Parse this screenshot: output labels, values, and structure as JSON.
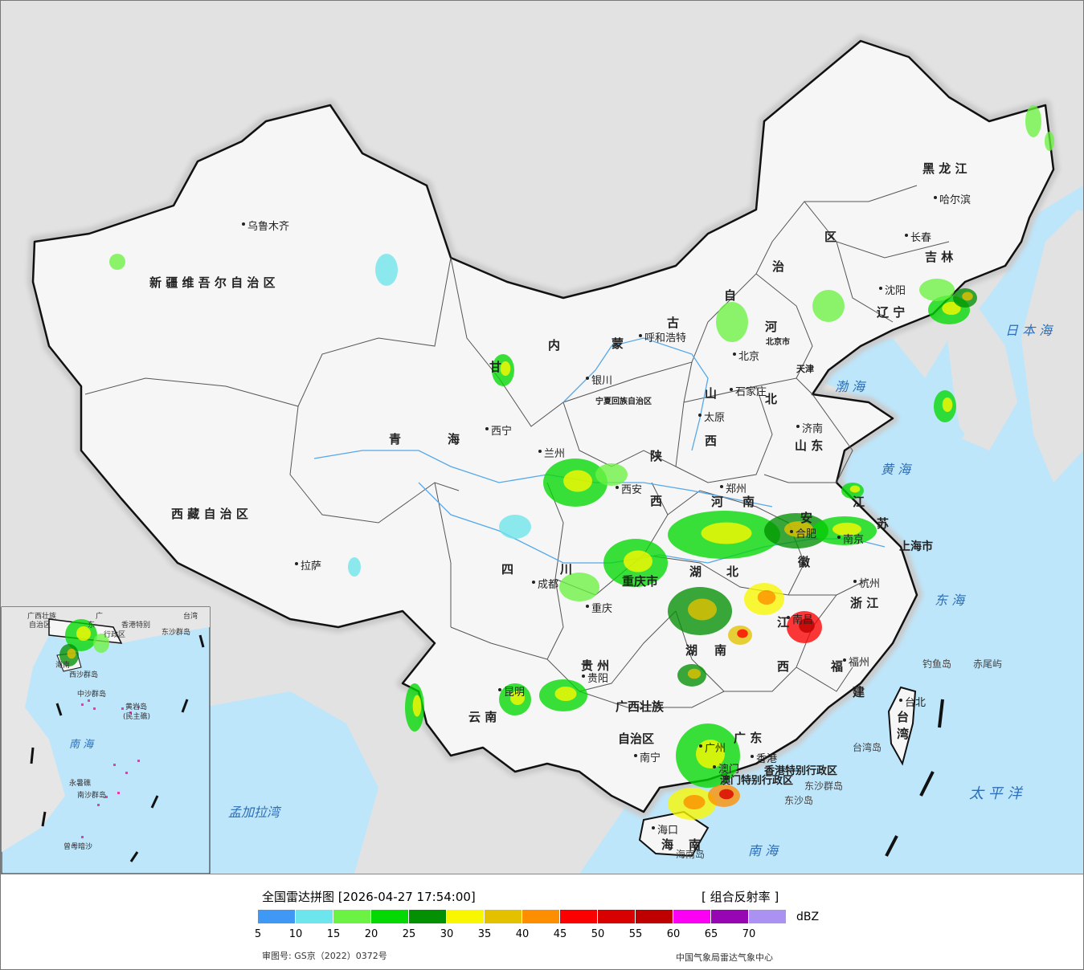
{
  "legend": {
    "title": "全国雷达拼图 [2026-04-27 17:54:00]",
    "product": "[ 组合反射率 ]",
    "unit": "dBZ",
    "colors": [
      "#3e98f4",
      "#6de5ec",
      "#6cf242",
      "#04d904",
      "#039003",
      "#f9f700",
      "#e3c100",
      "#fd8e00",
      "#fb0000",
      "#d90000",
      "#bf0000",
      "#fb00f5",
      "#9606b2",
      "#ab91f1"
    ],
    "ticks": [
      "5",
      "10",
      "15",
      "20",
      "25",
      "30",
      "35",
      "40",
      "45",
      "50",
      "55",
      "60",
      "65",
      "70"
    ],
    "approval": "审图号: GS京（2022）0372号",
    "source": "中国气象局雷达气象中心"
  },
  "provinces": [
    {
      "id": "xinjiang",
      "text": "新 疆 维 吾 尔 自 治 区"
    },
    {
      "id": "xizang",
      "text": "西 藏 自 治 区"
    },
    {
      "id": "qinghai-1",
      "text": "青"
    },
    {
      "id": "qinghai-2",
      "text": "海"
    },
    {
      "id": "gansu-1",
      "text": "甘"
    },
    {
      "id": "nmg-1",
      "text": "内"
    },
    {
      "id": "nmg-2",
      "text": "蒙"
    },
    {
      "id": "nmg-3",
      "text": "古"
    },
    {
      "id": "nmg-4",
      "text": "自"
    },
    {
      "id": "nmg-5",
      "text": "治"
    },
    {
      "id": "nmg-6",
      "text": "区"
    },
    {
      "id": "hlj",
      "text": "黑  龙  江"
    },
    {
      "id": "jilin",
      "text": "吉  林"
    },
    {
      "id": "liaoning",
      "text": "辽  宁"
    },
    {
      "id": "hebei-1",
      "text": "河"
    },
    {
      "id": "hebei-2",
      "text": "北"
    },
    {
      "id": "shanxi-1",
      "text": "山"
    },
    {
      "id": "shanxi-2",
      "text": "西"
    },
    {
      "id": "shandong",
      "text": "山  东"
    },
    {
      "id": "shaanxi-1",
      "text": "陕"
    },
    {
      "id": "shaanxi-2",
      "text": "西"
    },
    {
      "id": "henan-1",
      "text": "河"
    },
    {
      "id": "henan-2",
      "text": "南"
    },
    {
      "id": "jiangsu-1",
      "text": "江"
    },
    {
      "id": "jiangsu-2",
      "text": "苏"
    },
    {
      "id": "anhui-1",
      "text": "安"
    },
    {
      "id": "anhui-2",
      "text": "徽"
    },
    {
      "id": "sichuan-1",
      "text": "四"
    },
    {
      "id": "sichuan-2",
      "text": "川"
    },
    {
      "id": "chongqing",
      "text": "重庆市"
    },
    {
      "id": "hubei-1",
      "text": "湖"
    },
    {
      "id": "hubei-2",
      "text": "北"
    },
    {
      "id": "hunan-1",
      "text": "湖"
    },
    {
      "id": "hunan-2",
      "text": "南"
    },
    {
      "id": "jiangxi-1",
      "text": "江"
    },
    {
      "id": "jiangxi-2",
      "text": "西"
    },
    {
      "id": "zhejiang",
      "text": "浙  江"
    },
    {
      "id": "fujian-1",
      "text": "福"
    },
    {
      "id": "fujian-2",
      "text": "建"
    },
    {
      "id": "guizhou",
      "text": "贵  州"
    },
    {
      "id": "yunnan",
      "text": "云    南"
    },
    {
      "id": "guangxi-1",
      "text": "广西壮族"
    },
    {
      "id": "guangxi-2",
      "text": "自治区"
    },
    {
      "id": "guangdong",
      "text": "广  东"
    },
    {
      "id": "hainan-1",
      "text": "海"
    },
    {
      "id": "hainan-2",
      "text": "南"
    },
    {
      "id": "taiwan-1",
      "text": "台"
    },
    {
      "id": "taiwan-2",
      "text": "湾"
    },
    {
      "id": "shanghai",
      "text": "上海市"
    },
    {
      "id": "ningxia",
      "text": "宁夏回族自治区"
    },
    {
      "id": "tianjin",
      "text": "天津"
    },
    {
      "id": "beijing-city",
      "text": "北京市"
    },
    {
      "id": "hk-sar",
      "text": "香港特别行政区"
    },
    {
      "id": "macau-sar",
      "text": "澳门特别行政区"
    }
  ],
  "cities": [
    {
      "id": "urumqi",
      "text": "乌鲁木齐"
    },
    {
      "id": "lhasa",
      "text": "拉萨"
    },
    {
      "id": "xining",
      "text": "西宁"
    },
    {
      "id": "lanzhou",
      "text": "兰州"
    },
    {
      "id": "yinchuan",
      "text": "银川"
    },
    {
      "id": "hohhot",
      "text": "呼和浩特"
    },
    {
      "id": "harbin",
      "text": "哈尔滨"
    },
    {
      "id": "changchun",
      "text": "长春"
    },
    {
      "id": "shenyang",
      "text": "沈阳"
    },
    {
      "id": "beijing",
      "text": "北京"
    },
    {
      "id": "shijiazhuang",
      "text": "石家庄"
    },
    {
      "id": "taiyuan",
      "text": "太原"
    },
    {
      "id": "jinan",
      "text": "济南"
    },
    {
      "id": "xian",
      "text": "西安"
    },
    {
      "id": "zhengzhou",
      "text": "郑州"
    },
    {
      "id": "hefei",
      "text": "合肥"
    },
    {
      "id": "nanjing",
      "text": "南京"
    },
    {
      "id": "hangzhou",
      "text": "杭州"
    },
    {
      "id": "chengdu",
      "text": "成都"
    },
    {
      "id": "chongqing",
      "text": "重庆"
    },
    {
      "id": "guiyang",
      "text": "贵阳"
    },
    {
      "id": "kunming",
      "text": "昆明"
    },
    {
      "id": "nanning",
      "text": "南宁"
    },
    {
      "id": "guangzhou",
      "text": "广州"
    },
    {
      "id": "hongkong",
      "text": "香港"
    },
    {
      "id": "macau",
      "text": "澳门"
    },
    {
      "id": "haikou",
      "text": "海口"
    },
    {
      "id": "fuzhou",
      "text": "福州"
    },
    {
      "id": "nanchang",
      "text": "南昌"
    },
    {
      "id": "taibei",
      "text": "台北"
    }
  ],
  "seas": [
    {
      "id": "japan-sea",
      "text": "日 本 海"
    },
    {
      "id": "bohai",
      "text": "渤  海"
    },
    {
      "id": "yellow-sea",
      "text": "黄  海"
    },
    {
      "id": "east-sea",
      "text": "东  海"
    },
    {
      "id": "pacific",
      "text": "太  平  洋"
    },
    {
      "id": "south-sea",
      "text": "南    海"
    },
    {
      "id": "bengal",
      "text": "孟加拉湾"
    }
  ],
  "islands": [
    {
      "id": "diaoyu",
      "text": "钓鱼岛"
    },
    {
      "id": "chiwei",
      "text": "赤尾屿"
    },
    {
      "id": "dongsha-qd",
      "text": "东沙群岛"
    },
    {
      "id": "dongsha-d",
      "text": "东沙岛"
    },
    {
      "id": "taiwan-island",
      "text": "台湾岛"
    },
    {
      "id": "hainan-island",
      "text": "海南岛"
    }
  ],
  "inset": {
    "sea": "南  海",
    "labels": [
      "广西壮族",
      "自治区",
      "广",
      "东",
      "海南",
      "台湾",
      "香港特别",
      "行政区",
      "东沙群岛",
      "西沙群岛",
      "中沙群岛",
      "黄岩岛",
      "(民主礁)",
      "永暑礁",
      "南沙群岛",
      "曾母暗沙"
    ]
  }
}
